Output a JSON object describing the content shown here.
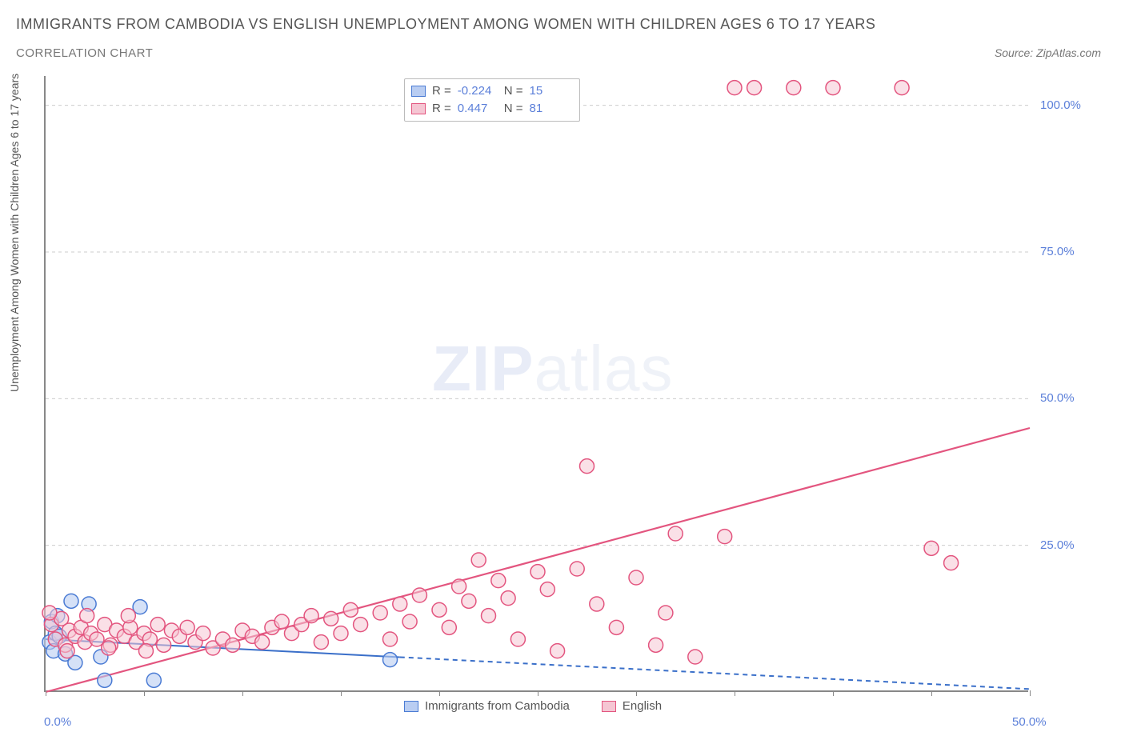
{
  "title": "IMMIGRANTS FROM CAMBODIA VS ENGLISH UNEMPLOYMENT AMONG WOMEN WITH CHILDREN AGES 6 TO 17 YEARS",
  "subtitle": "CORRELATION CHART",
  "source_label": "Source: ZipAtlas.com",
  "y_axis_label": "Unemployment Among Women with Children Ages 6 to 17 years",
  "watermark": {
    "zip": "ZIP",
    "atlas": "atlas"
  },
  "chart": {
    "type": "scatter",
    "xlim": [
      0,
      50
    ],
    "ylim": [
      0,
      105
    ],
    "x_ticks": [
      0,
      5,
      10,
      15,
      20,
      25,
      30,
      35,
      40,
      45,
      50
    ],
    "x_tick_labels": {
      "0": "0.0%",
      "50": "50.0%"
    },
    "y_ticks": [
      25,
      50,
      75,
      100
    ],
    "y_tick_labels": {
      "25": "25.0%",
      "50": "50.0%",
      "75": "75.0%",
      "100": "100.0%"
    },
    "grid_color": "#cccccc",
    "background_color": "#ffffff",
    "marker_radius": 9,
    "marker_stroke_width": 1.5,
    "series": [
      {
        "name": "Immigrants from Cambodia",
        "fill": "#b9cdf2",
        "stroke": "#4a7bd4",
        "opacity": 0.6,
        "r_value": "-0.224",
        "n_value": "15",
        "regression": {
          "x1": 0,
          "y1": 9.0,
          "x2": 50,
          "y2": 0.5,
          "solid_until_x": 18,
          "color": "#3a6fc9",
          "width": 2
        },
        "points": [
          [
            0.2,
            8.5
          ],
          [
            0.3,
            12.0
          ],
          [
            0.4,
            7.0
          ],
          [
            0.5,
            10.0
          ],
          [
            0.6,
            13.0
          ],
          [
            0.7,
            9.5
          ],
          [
            1.0,
            6.5
          ],
          [
            1.3,
            15.5
          ],
          [
            1.5,
            5.0
          ],
          [
            2.2,
            15.0
          ],
          [
            2.8,
            6.0
          ],
          [
            3.0,
            2.0
          ],
          [
            4.8,
            14.5
          ],
          [
            5.5,
            2.0
          ],
          [
            17.5,
            5.5
          ]
        ]
      },
      {
        "name": "English",
        "fill": "#f5c6d3",
        "stroke": "#e3557f",
        "opacity": 0.55,
        "r_value": "0.447",
        "n_value": "81",
        "regression": {
          "x1": 0,
          "y1": 0.0,
          "x2": 50,
          "y2": 45.0,
          "solid_until_x": 50,
          "color": "#e3557f",
          "width": 2.2
        },
        "points": [
          [
            0.3,
            11.5
          ],
          [
            0.5,
            9.0
          ],
          [
            0.8,
            12.5
          ],
          [
            1.0,
            8.0
          ],
          [
            1.2,
            10.5
          ],
          [
            1.5,
            9.5
          ],
          [
            1.8,
            11.0
          ],
          [
            2.0,
            8.5
          ],
          [
            2.3,
            10.0
          ],
          [
            2.6,
            9.0
          ],
          [
            3.0,
            11.5
          ],
          [
            3.3,
            8.0
          ],
          [
            3.6,
            10.5
          ],
          [
            4.0,
            9.5
          ],
          [
            4.3,
            11.0
          ],
          [
            4.6,
            8.5
          ],
          [
            5.0,
            10.0
          ],
          [
            5.3,
            9.0
          ],
          [
            5.7,
            11.5
          ],
          [
            6.0,
            8.0
          ],
          [
            6.4,
            10.5
          ],
          [
            6.8,
            9.5
          ],
          [
            7.2,
            11.0
          ],
          [
            7.6,
            8.5
          ],
          [
            8.0,
            10.0
          ],
          [
            8.5,
            7.5
          ],
          [
            9.0,
            9.0
          ],
          [
            9.5,
            8.0
          ],
          [
            10.0,
            10.5
          ],
          [
            10.5,
            9.5
          ],
          [
            11.0,
            8.5
          ],
          [
            11.5,
            11.0
          ],
          [
            12.0,
            12.0
          ],
          [
            12.5,
            10.0
          ],
          [
            13.0,
            11.5
          ],
          [
            13.5,
            13.0
          ],
          [
            14.0,
            8.5
          ],
          [
            14.5,
            12.5
          ],
          [
            15.0,
            10.0
          ],
          [
            15.5,
            14.0
          ],
          [
            16.0,
            11.5
          ],
          [
            17.0,
            13.5
          ],
          [
            17.5,
            9.0
          ],
          [
            18.0,
            15.0
          ],
          [
            18.5,
            12.0
          ],
          [
            19.0,
            16.5
          ],
          [
            20.0,
            14.0
          ],
          [
            20.5,
            11.0
          ],
          [
            21.0,
            18.0
          ],
          [
            21.5,
            15.5
          ],
          [
            22.0,
            22.5
          ],
          [
            22.5,
            13.0
          ],
          [
            23.0,
            19.0
          ],
          [
            23.5,
            16.0
          ],
          [
            24.0,
            9.0
          ],
          [
            25.0,
            20.5
          ],
          [
            25.5,
            17.5
          ],
          [
            26.0,
            7.0
          ],
          [
            27.0,
            21.0
          ],
          [
            27.5,
            38.5
          ],
          [
            28.0,
            15.0
          ],
          [
            29.0,
            11.0
          ],
          [
            30.0,
            19.5
          ],
          [
            31.0,
            8.0
          ],
          [
            31.5,
            13.5
          ],
          [
            32.0,
            27.0
          ],
          [
            33.0,
            6.0
          ],
          [
            34.5,
            26.5
          ],
          [
            35.0,
            103
          ],
          [
            36.0,
            103
          ],
          [
            38.0,
            103
          ],
          [
            40.0,
            103
          ],
          [
            43.5,
            103
          ],
          [
            45.0,
            24.5
          ],
          [
            46.0,
            22.0
          ],
          [
            0.2,
            13.5
          ],
          [
            1.1,
            7.0
          ],
          [
            2.1,
            13.0
          ],
          [
            3.2,
            7.5
          ],
          [
            4.2,
            13.0
          ],
          [
            5.1,
            7.0
          ]
        ]
      }
    ]
  },
  "bottom_legend": [
    {
      "swatch_fill": "#b9cdf2",
      "swatch_stroke": "#4a7bd4",
      "label": "Immigrants from Cambodia"
    },
    {
      "swatch_fill": "#f5c6d3",
      "swatch_stroke": "#e3557f",
      "label": "English"
    }
  ]
}
